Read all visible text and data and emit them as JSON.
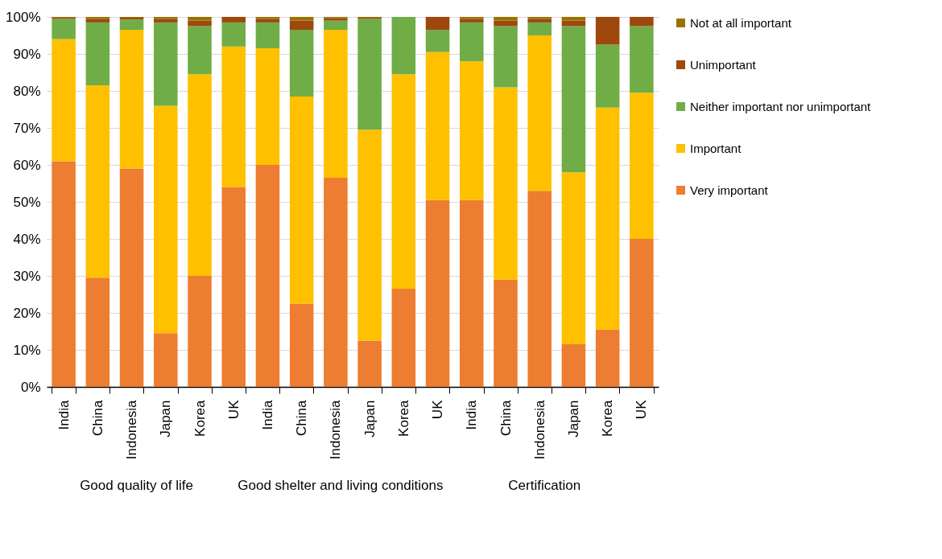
{
  "chart_data": {
    "type": "bar",
    "stacked": true,
    "categories": [
      "India",
      "China",
      "Indonesia",
      "Japan",
      "Korea",
      "UK",
      "India",
      "China",
      "Indonesia",
      "Japan",
      "Korea",
      "UK",
      "India",
      "China",
      "Indonesia",
      "Japan",
      "Korea",
      "UK"
    ],
    "annotations": [
      "Good quality of life",
      "Good shelter and living conditions",
      "Certification"
    ],
    "series": [
      {
        "name": "Very important",
        "color": "#ed7d31",
        "values": [
          61,
          29.5,
          59,
          14.5,
          30,
          54,
          60,
          22.5,
          56.5,
          12.5,
          26.5,
          50.5,
          50.5,
          29,
          53,
          11.5,
          15.5,
          40
        ]
      },
      {
        "name": "Important",
        "color": "#ffc000",
        "values": [
          33,
          52,
          37.5,
          61.5,
          54.5,
          38,
          31.5,
          56,
          40,
          57,
          58,
          40,
          37.5,
          52,
          42,
          46.5,
          60,
          39.5
        ]
      },
      {
        "name": "Neither important nor unimportant",
        "color": "#70ad47",
        "values": [
          5.5,
          17,
          2.8,
          22.5,
          13,
          6.5,
          7,
          18,
          2.5,
          30,
          15.5,
          6,
          10.5,
          16.5,
          3.5,
          39.5,
          17,
          18
        ]
      },
      {
        "name": "Unimportant",
        "color": "#9e480e",
        "values": [
          0.3,
          1,
          0.5,
          1,
          1.5,
          1.5,
          1,
          2.5,
          0.7,
          0.3,
          0,
          3.5,
          1,
          1.5,
          1,
          1.5,
          7.5,
          2.5
        ]
      },
      {
        "name": "Not at all important",
        "color": "#997300",
        "values": [
          0.2,
          0.5,
          0.2,
          0.5,
          1,
          0,
          0.5,
          1,
          0.3,
          0.2,
          0,
          0,
          0.5,
          1,
          0.5,
          1,
          0,
          0
        ]
      }
    ],
    "ylim": [
      0,
      100
    ],
    "yticks": [
      {
        "value": 0,
        "label": "0%"
      },
      {
        "value": 10,
        "label": "10%"
      },
      {
        "value": 20,
        "label": "20%"
      },
      {
        "value": 30,
        "label": "30%"
      },
      {
        "value": 40,
        "label": "40%"
      },
      {
        "value": 50,
        "label": "50%"
      },
      {
        "value": 60,
        "label": "60%"
      },
      {
        "value": 70,
        "label": "70%"
      },
      {
        "value": 80,
        "label": "80%"
      },
      {
        "value": 90,
        "label": "90%"
      },
      {
        "value": 100,
        "label": "100%"
      }
    ],
    "grid": true,
    "legend": "right"
  }
}
